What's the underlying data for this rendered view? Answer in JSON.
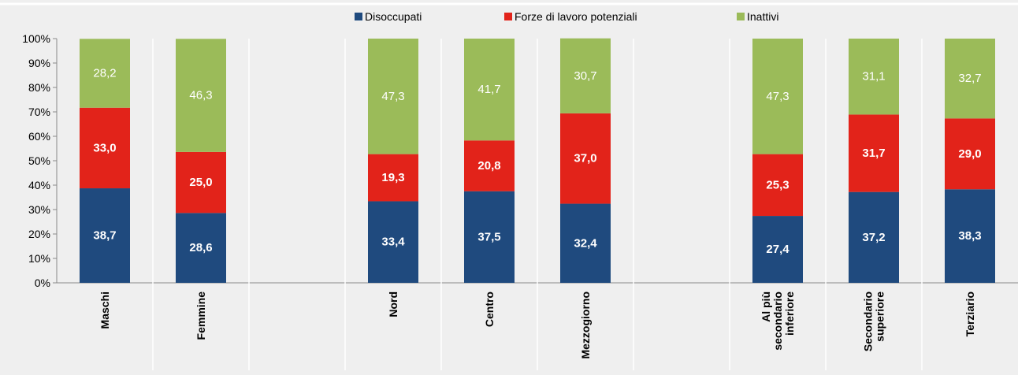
{
  "chart_data": {
    "type": "stacked_bar",
    "categories": [
      "Maschi",
      "Femmine",
      null,
      "Nord",
      "Centro",
      "Mezzogiorno",
      null,
      "Al più secondario inferiore",
      "Secondario superiore",
      "Terziario"
    ],
    "series": [
      {
        "name": "Disoccupati",
        "color": "#1f4a7e",
        "values": [
          38.7,
          28.6,
          null,
          33.4,
          37.5,
          32.4,
          null,
          27.4,
          37.2,
          38.3
        ],
        "value_labels": [
          "38,7",
          "28,6",
          null,
          "33,4",
          "37,5",
          "32,4",
          null,
          "27,4",
          "37,2",
          "38,3"
        ]
      },
      {
        "name": "Forze di lavoro potenziali",
        "color": "#e2231a",
        "values": [
          33.0,
          25.0,
          null,
          19.3,
          20.8,
          37.0,
          null,
          25.3,
          31.7,
          29.0
        ],
        "value_labels": [
          "33,0",
          "25,0",
          null,
          "19,3",
          "20,8",
          "37,0",
          null,
          "25,3",
          "31,7",
          "29,0"
        ]
      },
      {
        "name": "Inattivi",
        "color": "#9bbb59",
        "values": [
          28.2,
          46.3,
          null,
          47.3,
          41.7,
          30.7,
          null,
          47.3,
          31.1,
          32.7
        ],
        "value_labels": [
          "28,2",
          "46,3",
          null,
          "47,3",
          "41,7",
          "30,7",
          null,
          "47,3",
          "31,1",
          "32,7"
        ]
      }
    ],
    "ylim": [
      0,
      100
    ],
    "yticks": [
      {
        "value": 0,
        "label": "0%"
      },
      {
        "value": 10,
        "label": "10%"
      },
      {
        "value": 20,
        "label": "20%"
      },
      {
        "value": 30,
        "label": "30%"
      },
      {
        "value": 40,
        "label": "40%"
      },
      {
        "value": 50,
        "label": "50%"
      },
      {
        "value": 60,
        "label": "60%"
      },
      {
        "value": 70,
        "label": "70%"
      },
      {
        "value": 80,
        "label": "80%"
      },
      {
        "value": 90,
        "label": "90%"
      },
      {
        "value": 100,
        "label": "100%"
      }
    ],
    "legend": "top"
  }
}
